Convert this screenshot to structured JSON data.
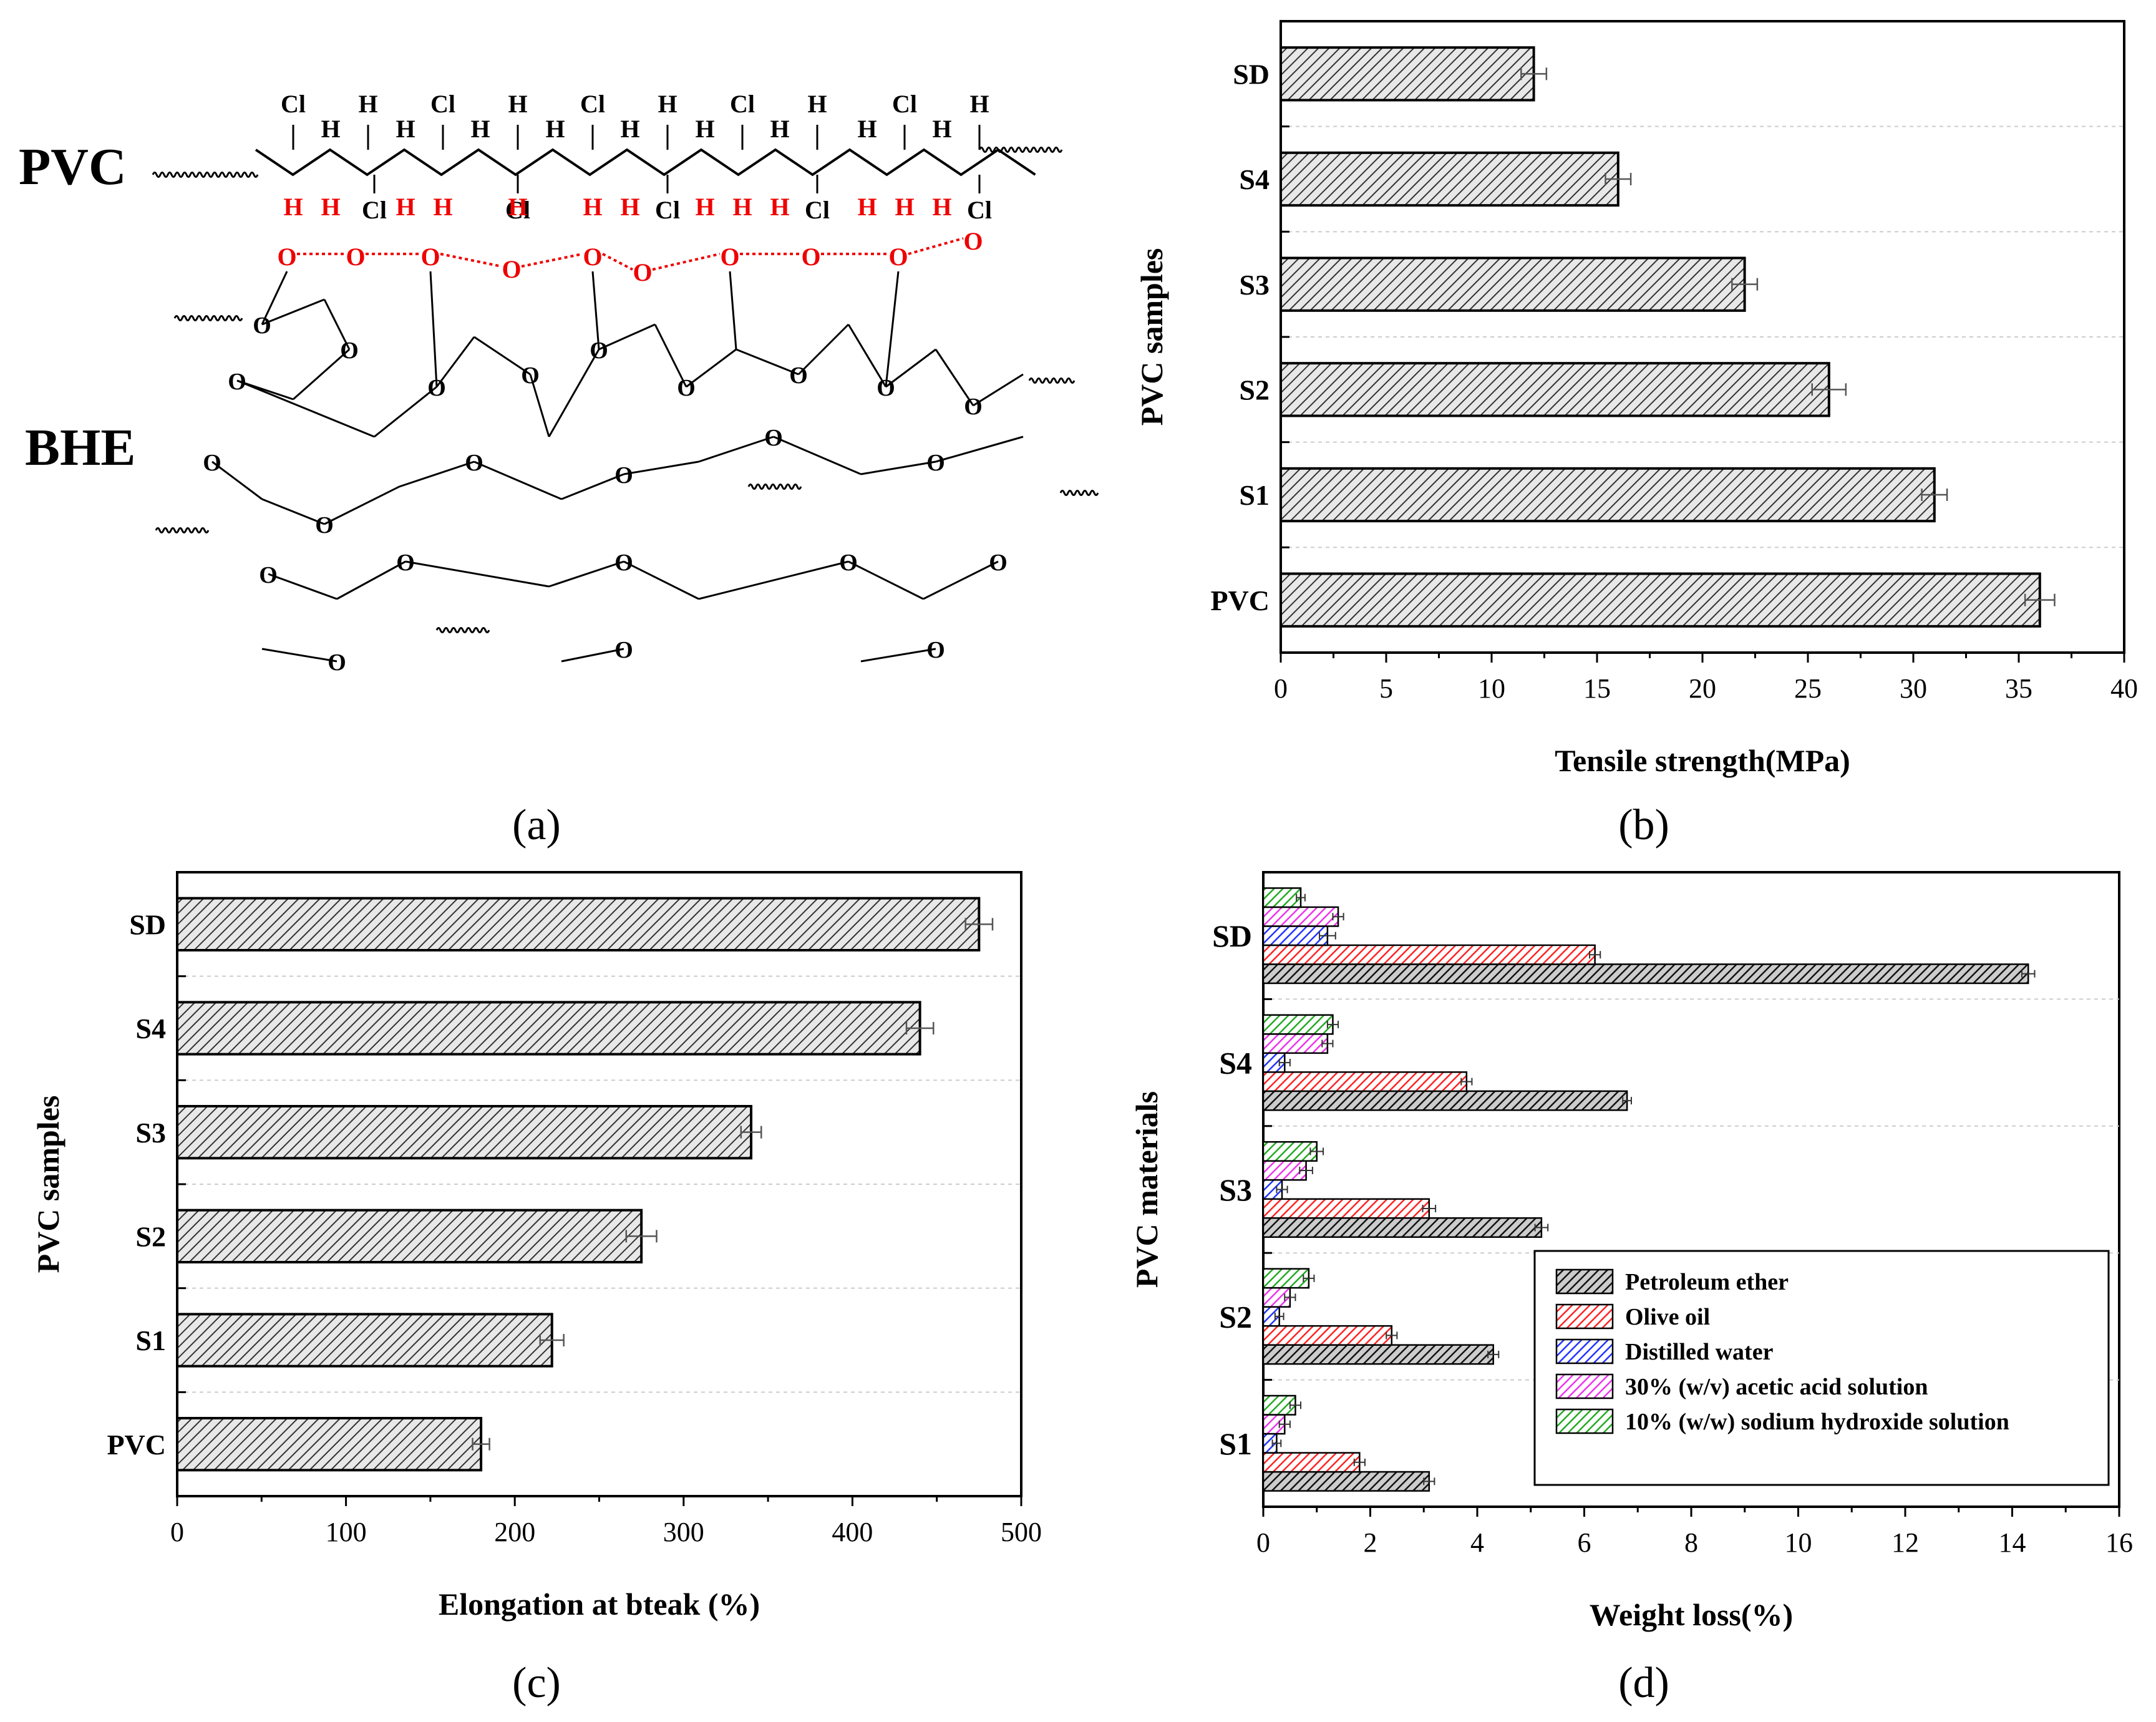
{
  "panel_labels": [
    "(a)",
    "(b)",
    "(c)",
    "(d)"
  ],
  "scheme": {
    "polymer_label": "PVC",
    "plasticizer_label": "BHE",
    "chlorine_label": "Cl",
    "hydrogen_label": "H",
    "oxygen_label": "O"
  },
  "chart_data": [
    {
      "id": "b",
      "type": "bar",
      "orientation": "horizontal",
      "categories": [
        "SD",
        "S4",
        "S3",
        "S2",
        "S1",
        "PVC"
      ],
      "values": [
        12,
        16,
        22,
        26,
        31,
        36
      ],
      "errors": [
        0.6,
        0.6,
        0.6,
        0.8,
        0.6,
        0.7
      ],
      "xlabel": "Tensile strength(MPa)",
      "ylabel": "PVC samples",
      "xlim": [
        0,
        40
      ],
      "xticks": [
        0,
        5,
        10,
        15,
        20,
        25,
        30,
        35,
        40
      ],
      "grid": true
    },
    {
      "id": "c",
      "type": "bar",
      "orientation": "horizontal",
      "categories": [
        "SD",
        "S4",
        "S3",
        "S2",
        "S1",
        "PVC"
      ],
      "values": [
        475,
        440,
        340,
        275,
        222,
        180
      ],
      "errors": [
        8,
        8,
        6,
        9,
        7,
        5
      ],
      "xlabel": "Elongation at bteak (%)",
      "ylabel": "PVC samples",
      "xlim": [
        0,
        500
      ],
      "xticks": [
        0,
        100,
        200,
        300,
        400,
        500
      ],
      "grid": true
    },
    {
      "id": "d",
      "type": "bar",
      "orientation": "horizontal",
      "categories": [
        "SD",
        "S4",
        "S3",
        "S2",
        "S1"
      ],
      "series": [
        {
          "name": "Petroleum ether",
          "color": "#222222",
          "values": [
            14.3,
            6.8,
            5.2,
            4.3,
            3.1
          ],
          "errors": [
            0.12,
            0.08,
            0.12,
            0.1,
            0.1
          ]
        },
        {
          "name": "Olive oil",
          "color": "#ff2222",
          "values": [
            6.2,
            3.8,
            3.1,
            2.4,
            1.8
          ],
          "errors": [
            0.1,
            0.1,
            0.12,
            0.1,
            0.1
          ]
        },
        {
          "name": "Distilled water",
          "color": "#2233ff",
          "values": [
            1.2,
            0.4,
            0.35,
            0.3,
            0.25
          ],
          "errors": [
            0.15,
            0.1,
            0.1,
            0.08,
            0.08
          ]
        },
        {
          "name": "30% (w/v) acetic acid solution",
          "color": "#ee33ee",
          "values": [
            1.4,
            1.2,
            0.8,
            0.5,
            0.4
          ],
          "errors": [
            0.1,
            0.1,
            0.12,
            0.1,
            0.1
          ]
        },
        {
          "name": "10% (w/w) sodium hydroxide solution",
          "color": "#22aa22",
          "values": [
            0.7,
            1.3,
            1.0,
            0.85,
            0.6
          ],
          "errors": [
            0.08,
            0.1,
            0.12,
            0.1,
            0.1
          ]
        }
      ],
      "xlabel": "Weight loss(%)",
      "ylabel": "PVC materials",
      "xlim": [
        0,
        16
      ],
      "xticks": [
        0,
        2,
        4,
        6,
        8,
        10,
        12,
        14,
        16
      ],
      "legend_position": "bottom-right",
      "grid": true
    }
  ]
}
